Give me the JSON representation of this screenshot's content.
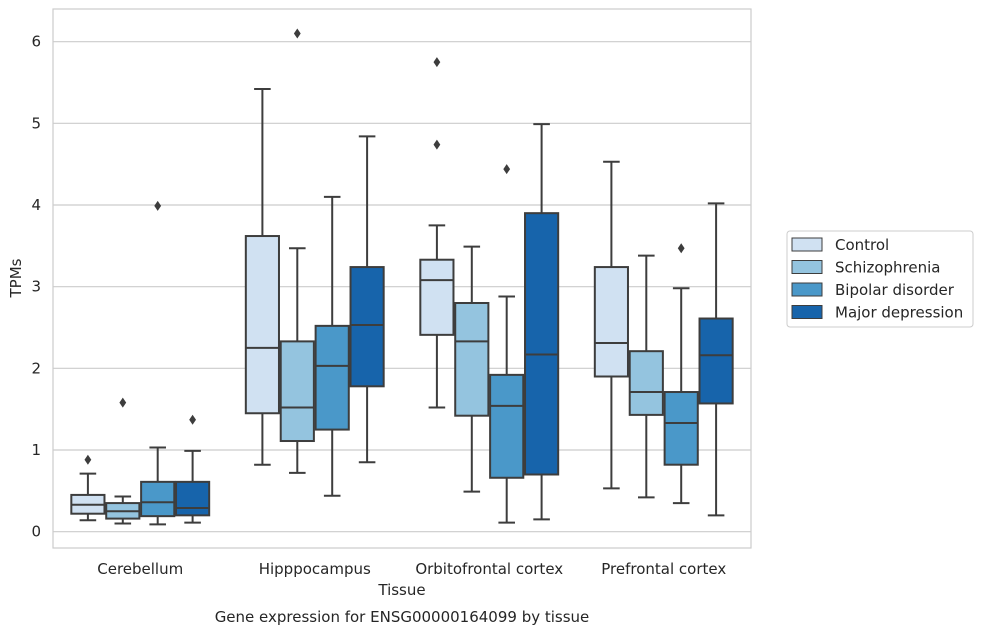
{
  "chart_data": {
    "type": "box",
    "xlabel": "Tissue",
    "ylabel": "TPMs",
    "caption": "Gene expression for ENSG00000164099 by tissue",
    "ylim": [
      -0.2,
      6.4
    ],
    "yticks": [
      0,
      1,
      2,
      3,
      4,
      5,
      6
    ],
    "grid": true,
    "legend_position": "right",
    "categories": [
      "Cerebellum",
      "Hipppocampus",
      "Orbitofrontal cortex",
      "Prefrontal cortex"
    ],
    "series": [
      {
        "name": "Control",
        "color": "#d0e1f2",
        "boxes": [
          {
            "whisker_low": 0.14,
            "q1": 0.22,
            "median": 0.33,
            "q3": 0.45,
            "whisker_high": 0.71,
            "outliers": [
              0.88
            ]
          },
          {
            "whisker_low": 0.82,
            "q1": 1.45,
            "median": 2.25,
            "q3": 3.62,
            "whisker_high": 5.42,
            "outliers": []
          },
          {
            "whisker_low": 1.52,
            "q1": 2.41,
            "median": 3.08,
            "q3": 3.33,
            "whisker_high": 3.75,
            "outliers": [
              4.74,
              5.75
            ]
          },
          {
            "whisker_low": 0.53,
            "q1": 1.9,
            "median": 2.31,
            "q3": 3.24,
            "whisker_high": 4.53,
            "outliers": []
          }
        ]
      },
      {
        "name": "Schizophrenia",
        "color": "#94c4df",
        "boxes": [
          {
            "whisker_low": 0.1,
            "q1": 0.16,
            "median": 0.25,
            "q3": 0.35,
            "whisker_high": 0.43,
            "outliers": [
              1.58
            ]
          },
          {
            "whisker_low": 0.72,
            "q1": 1.11,
            "median": 1.52,
            "q3": 2.33,
            "whisker_high": 3.47,
            "outliers": [
              6.1
            ]
          },
          {
            "whisker_low": 0.49,
            "q1": 1.42,
            "median": 2.33,
            "q3": 2.8,
            "whisker_high": 3.49,
            "outliers": []
          },
          {
            "whisker_low": 0.42,
            "q1": 1.43,
            "median": 1.71,
            "q3": 2.21,
            "whisker_high": 3.38,
            "outliers": []
          }
        ]
      },
      {
        "name": "Bipolar disorder",
        "color": "#4a98c9",
        "boxes": [
          {
            "whisker_low": 0.09,
            "q1": 0.19,
            "median": 0.36,
            "q3": 0.61,
            "whisker_high": 1.03,
            "outliers": [
              3.99
            ]
          },
          {
            "whisker_low": 0.44,
            "q1": 1.25,
            "median": 2.03,
            "q3": 2.52,
            "whisker_high": 4.1,
            "outliers": []
          },
          {
            "whisker_low": 0.11,
            "q1": 0.66,
            "median": 1.54,
            "q3": 1.92,
            "whisker_high": 2.88,
            "outliers": [
              4.44
            ]
          },
          {
            "whisker_low": 0.35,
            "q1": 0.82,
            "median": 1.33,
            "q3": 1.71,
            "whisker_high": 2.98,
            "outliers": [
              3.47
            ]
          }
        ]
      },
      {
        "name": "Major depression",
        "color": "#1764ab",
        "boxes": [
          {
            "whisker_low": 0.11,
            "q1": 0.2,
            "median": 0.29,
            "q3": 0.61,
            "whisker_high": 0.99,
            "outliers": [
              1.37
            ]
          },
          {
            "whisker_low": 0.85,
            "q1": 1.78,
            "median": 2.53,
            "q3": 3.24,
            "whisker_high": 4.84,
            "outliers": []
          },
          {
            "whisker_low": 0.15,
            "q1": 0.7,
            "median": 2.17,
            "q3": 3.9,
            "whisker_high": 4.99,
            "outliers": []
          },
          {
            "whisker_low": 0.2,
            "q1": 1.57,
            "median": 2.16,
            "q3": 2.61,
            "whisker_high": 4.02,
            "outliers": []
          }
        ]
      }
    ]
  }
}
